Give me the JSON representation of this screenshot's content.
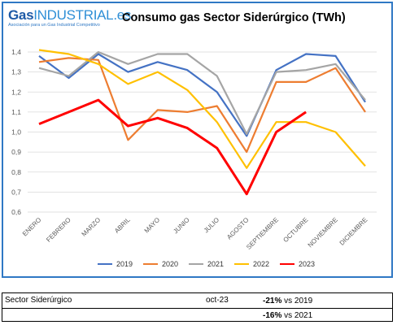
{
  "logo": {
    "brand_gas": "Gas",
    "brand_industrial": "INDUSTRIAL",
    "brand_suffix": ".es",
    "tagline": "Asociación para un Gas Industrial Competitivo"
  },
  "chart_data": {
    "type": "line",
    "title": "Consumo gas Sector Siderúrgico (TWh)",
    "categories": [
      "ENERO",
      "FEBRERO",
      "MARZO",
      "ABRIL",
      "MAYO",
      "JUNIO",
      "JULIO",
      "AGOSTO",
      "SEPTIEMBRE",
      "OCTUBRE",
      "NOVIEMBRE",
      "DICIEMBRE"
    ],
    "ylim": [
      0.6,
      1.4
    ],
    "yticks": [
      "0,6",
      "0,7",
      "0,8",
      "0,9",
      "1,0",
      "1,1",
      "1,2",
      "1,3",
      "1,4"
    ],
    "grid": true,
    "legend_position": "bottom",
    "series": [
      {
        "name": "2019",
        "color": "#4472c4",
        "values": [
          1.38,
          1.27,
          1.39,
          1.3,
          1.35,
          1.31,
          1.2,
          0.98,
          1.31,
          1.39,
          1.38,
          1.15
        ]
      },
      {
        "name": "2020",
        "color": "#ed7d31",
        "values": [
          1.35,
          1.37,
          1.36,
          0.96,
          1.11,
          1.1,
          1.13,
          0.9,
          1.25,
          1.25,
          1.32,
          1.1
        ]
      },
      {
        "name": "2021",
        "color": "#a5a5a5",
        "values": [
          1.32,
          1.28,
          1.4,
          1.34,
          1.39,
          1.39,
          1.28,
          0.99,
          1.3,
          1.31,
          1.34,
          1.16
        ]
      },
      {
        "name": "2022",
        "color": "#ffc000",
        "values": [
          1.41,
          1.39,
          1.34,
          1.24,
          1.3,
          1.21,
          1.05,
          0.82,
          1.05,
          1.05,
          1.0,
          0.83
        ]
      },
      {
        "name": "2023",
        "color": "#ff0000",
        "values": [
          1.04,
          1.1,
          1.16,
          1.03,
          1.07,
          1.02,
          0.92,
          0.69,
          1.0,
          1.1,
          null,
          null
        ]
      }
    ]
  },
  "table": {
    "label": "Sector Siderúrgico",
    "period": "oct-23",
    "row1_pct": "-21%",
    "row1_text": "vs 2019",
    "row2_pct": "-16%",
    "row2_text": "vs 2021"
  }
}
